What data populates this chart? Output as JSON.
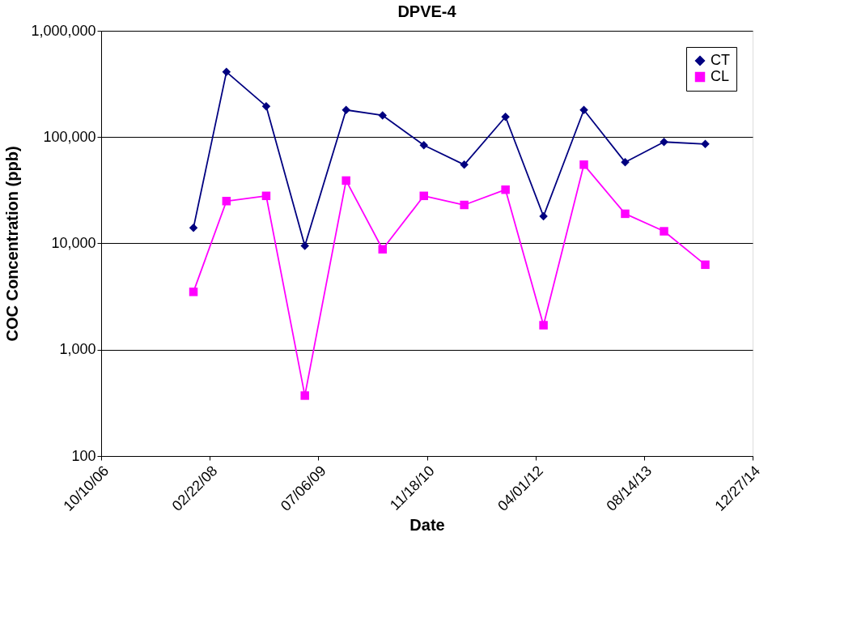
{
  "chart_data": {
    "type": "line",
    "title": "DPVE-4",
    "xlabel": "Date",
    "ylabel": "COC Concentration (ppb)",
    "x": [
      "2007-12-09",
      "2008-05-09",
      "2008-11-08",
      "2009-05-05",
      "2009-11-11",
      "2010-04-28",
      "2010-11-04",
      "2011-05-09",
      "2011-11-15",
      "2012-05-08",
      "2012-11-10",
      "2013-05-19",
      "2013-11-14",
      "2014-05-23"
    ],
    "series": [
      {
        "name": "CT",
        "color": "#000080",
        "marker": "diamond",
        "values": [
          14000,
          410000,
          195000,
          9500,
          180000,
          160000,
          84000,
          55000,
          155000,
          18000,
          180000,
          58000,
          90000,
          86000
        ]
      },
      {
        "name": "CL",
        "color": "#ff00ff",
        "marker": "square",
        "values": [
          3500,
          25000,
          28000,
          370,
          39000,
          8800,
          28000,
          23000,
          32000,
          1700,
          55000,
          19000,
          13000,
          6300
        ]
      }
    ],
    "log": "y",
    "xlim": [
      "2006-10-10",
      "2014-12-27"
    ],
    "xticks": [
      {
        "value": "2006-10-10",
        "label": "10/10/06"
      },
      {
        "value": "2008-02-22",
        "label": "02/22/08"
      },
      {
        "value": "2009-07-06",
        "label": "07/06/09"
      },
      {
        "value": "2010-11-18",
        "label": "11/18/10"
      },
      {
        "value": "2012-04-01",
        "label": "04/01/12"
      },
      {
        "value": "2013-08-14",
        "label": "08/14/13"
      },
      {
        "value": "2014-12-27",
        "label": "12/27/14"
      }
    ],
    "ylim": [
      100,
      1000000
    ],
    "yticks": [
      {
        "value": 100,
        "label": "100"
      },
      {
        "value": 1000,
        "label": "1,000"
      },
      {
        "value": 10000,
        "label": "10,000"
      },
      {
        "value": 100000,
        "label": "100,000"
      },
      {
        "value": 1000000,
        "label": "1,000,000"
      }
    ],
    "grid": "y",
    "legend": "top right",
    "line_style": "solid"
  }
}
